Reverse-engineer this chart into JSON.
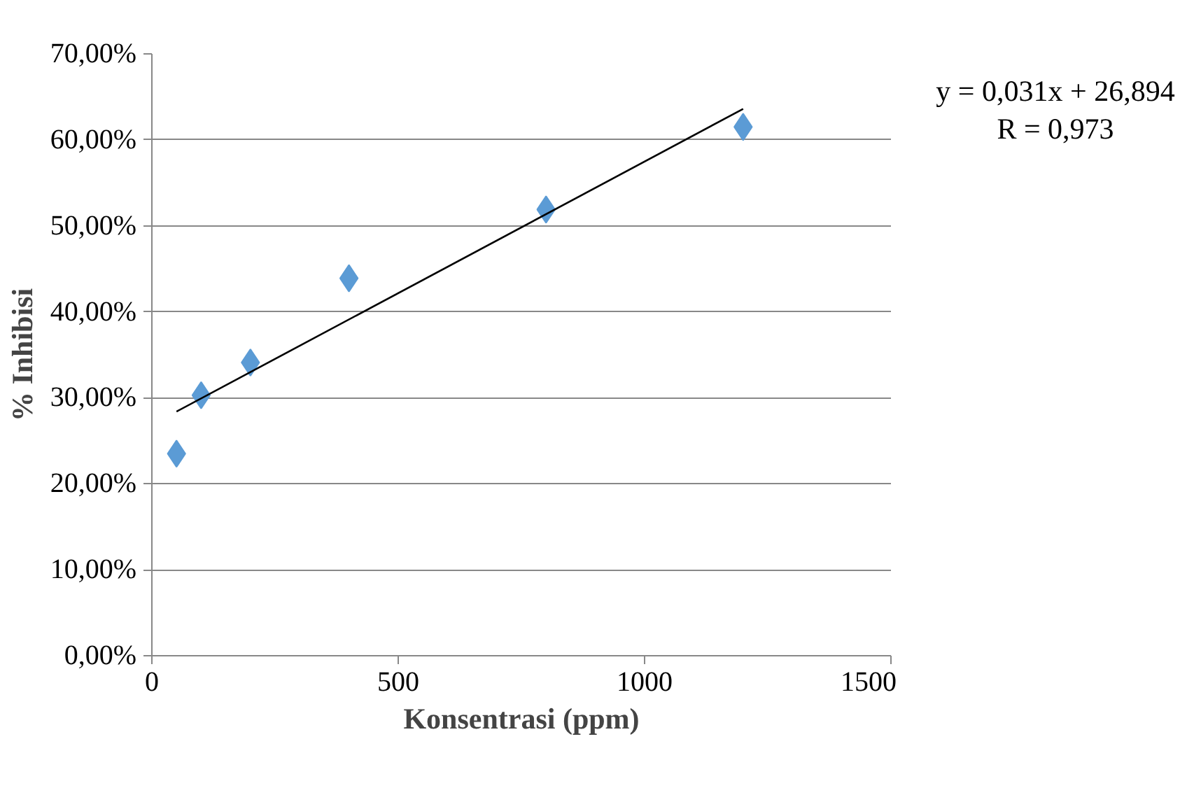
{
  "chart_data": {
    "type": "scatter",
    "xlabel": "Konsentrasi (ppm)",
    "ylabel": "% Inhibisi",
    "x": [
      50,
      100,
      200,
      400,
      800,
      1200
    ],
    "series": [
      {
        "color": "#5b9bd5",
        "marker": "diamond",
        "values": [
          23.5,
          30.3,
          34.1,
          43.9,
          51.9,
          61.5
        ]
      },
      {
        "type": "line",
        "marker": "none",
        "color": "#000000",
        "x": [
          50,
          1200
        ],
        "values": [
          28.4,
          63.6
        ]
      }
    ],
    "xlim": [
      0,
      1500
    ],
    "xticks": [
      0,
      500,
      1000,
      1500
    ],
    "ylim": [
      0,
      70
    ],
    "yticks": [
      {
        "value": 0,
        "label": "0,00%"
      },
      {
        "value": 10,
        "label": "10,00%"
      },
      {
        "value": 20,
        "label": "20,00%"
      },
      {
        "value": 30,
        "label": "30,00%"
      },
      {
        "value": 40,
        "label": "40,00%"
      },
      {
        "value": 50,
        "label": "50,00%"
      },
      {
        "value": 60,
        "label": "60,00%"
      },
      {
        "value": 70,
        "label": "70,00%"
      }
    ],
    "grid": "y",
    "annotations": [
      "y = 0,031x + 26,894",
      "R = 0,973"
    ]
  }
}
